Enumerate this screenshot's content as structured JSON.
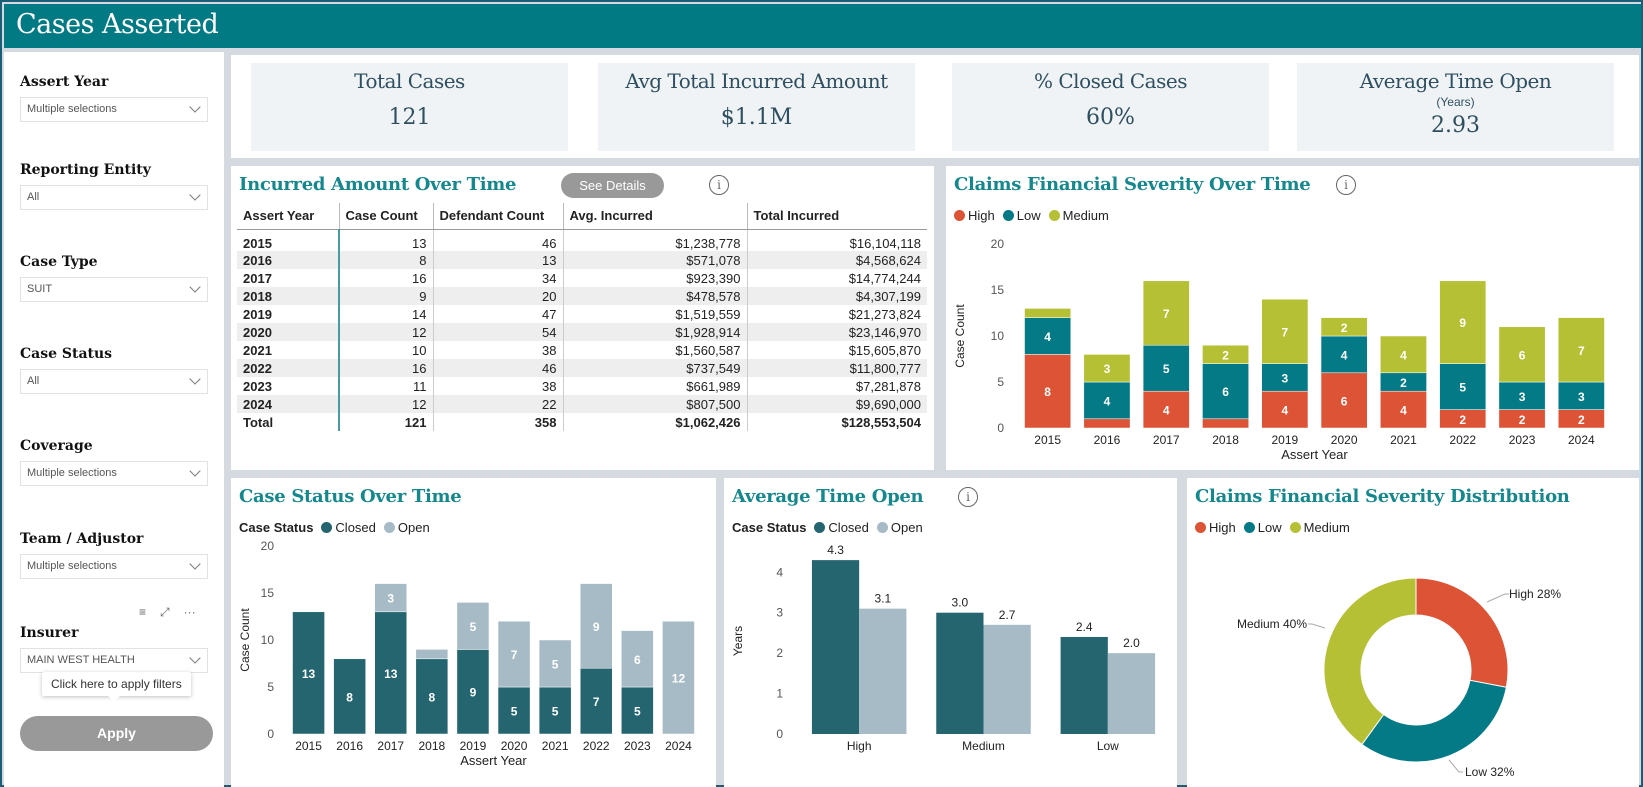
{
  "app": {
    "title": "Cases Asserted"
  },
  "colors": {
    "teal_header": "#017a84",
    "high": "#dc5335",
    "low": "#037a86",
    "medium": "#b5c035",
    "closed": "#246570",
    "open": "#a7bbc6",
    "title_teal": "#15888e"
  },
  "filters": [
    {
      "label": "Assert Year",
      "value": "Multiple selections"
    },
    {
      "label": "Reporting Entity",
      "value": "All"
    },
    {
      "label": "Case Type",
      "value": "SUIT"
    },
    {
      "label": "Case Status",
      "value": "All"
    },
    {
      "label": "Coverage",
      "value": "Multiple selections"
    },
    {
      "label": "Team / Adjustor",
      "value": "Multiple selections"
    },
    {
      "label": "Insurer",
      "value": "MAIN WEST HEALTH"
    }
  ],
  "slicer_tools": {
    "filter_icon": "≡",
    "focus_icon": "⤢",
    "more_icon": "···"
  },
  "tooltip": {
    "text": "Click here to apply filters"
  },
  "apply_button": {
    "label": "Apply"
  },
  "kpis": [
    {
      "title": "Total Cases",
      "subtitle": "",
      "value": "121"
    },
    {
      "title": "Avg Total Incurred Amount",
      "subtitle": "",
      "value": "$1.1M"
    },
    {
      "title": "% Closed Cases",
      "subtitle": "",
      "value": "60%"
    },
    {
      "title": "Average Time Open",
      "subtitle": "(Years)",
      "value": "2.93"
    }
  ],
  "incurred_table": {
    "title": "Incurred Amount Over Time",
    "see_details_label": "See Details",
    "info_icon": "i",
    "columns": [
      "Assert Year",
      "Case Count",
      "Defendant Count",
      "Avg. Incurred",
      "Total Incurred"
    ],
    "rows": [
      [
        "2015",
        "13",
        "46",
        "$1,238,778",
        "$16,104,118"
      ],
      [
        "2016",
        "8",
        "13",
        "$571,078",
        "$4,568,624"
      ],
      [
        "2017",
        "16",
        "34",
        "$923,390",
        "$14,774,244"
      ],
      [
        "2018",
        "9",
        "20",
        "$478,578",
        "$4,307,199"
      ],
      [
        "2019",
        "14",
        "47",
        "$1,519,559",
        "$21,273,824"
      ],
      [
        "2020",
        "12",
        "54",
        "$1,928,914",
        "$23,146,970"
      ],
      [
        "2021",
        "10",
        "38",
        "$1,560,587",
        "$15,605,870"
      ],
      [
        "2022",
        "16",
        "46",
        "$737,549",
        "$11,800,777"
      ],
      [
        "2023",
        "11",
        "38",
        "$661,989",
        "$7,281,878"
      ],
      [
        "2024",
        "12",
        "22",
        "$807,500",
        "$9,690,000"
      ]
    ],
    "total": [
      "Total",
      "121",
      "358",
      "$1,062,426",
      "$128,553,504"
    ]
  },
  "chart_data": [
    {
      "id": "severity_over_time",
      "type": "bar",
      "stacked": true,
      "title": "Claims Financial Severity Over Time",
      "info_icon": "i",
      "legend_title": "",
      "legend_position": "top-left",
      "categories": [
        "2015",
        "2016",
        "2017",
        "2018",
        "2019",
        "2020",
        "2021",
        "2022",
        "2023",
        "2024"
      ],
      "series": [
        {
          "name": "High",
          "color": "#dc5335",
          "values": [
            8,
            1,
            4,
            1,
            4,
            6,
            4,
            2,
            2,
            2
          ],
          "labels": [
            "8",
            "",
            "4",
            "",
            "4",
            "6",
            "4",
            "2",
            "2",
            "2"
          ]
        },
        {
          "name": "Low",
          "color": "#037a86",
          "values": [
            4,
            4,
            5,
            6,
            3,
            4,
            2,
            5,
            3,
            3
          ],
          "labels": [
            "4",
            "4",
            "5",
            "6",
            "3",
            "4",
            "2",
            "5",
            "3",
            "3"
          ]
        },
        {
          "name": "Medium",
          "color": "#b5c035",
          "values": [
            1,
            3,
            7,
            2,
            7,
            2,
            4,
            9,
            6,
            7
          ],
          "labels": [
            "",
            "3",
            "7",
            "2",
            "7",
            "2",
            "4",
            "9",
            "6",
            "7"
          ]
        }
      ],
      "xlabel": "Assert Year",
      "ylabel": "Case Count",
      "yticks": [
        0,
        5,
        10,
        15,
        20
      ],
      "ylim": [
        0,
        20
      ],
      "grid": false
    },
    {
      "id": "case_status_over_time",
      "type": "bar",
      "stacked": true,
      "title": "Case Status Over Time",
      "legend_title": "Case Status",
      "legend_position": "top-left",
      "categories": [
        "2015",
        "2016",
        "2017",
        "2018",
        "2019",
        "2020",
        "2021",
        "2022",
        "2023",
        "2024"
      ],
      "series": [
        {
          "name": "Closed",
          "color": "#246570",
          "values": [
            13,
            8,
            13,
            8,
            9,
            5,
            5,
            7,
            5,
            0
          ],
          "labels": [
            "13",
            "8",
            "13",
            "8",
            "9",
            "5",
            "5",
            "7",
            "5",
            ""
          ]
        },
        {
          "name": "Open",
          "color": "#a7bbc6",
          "values": [
            0,
            0,
            3,
            1,
            5,
            7,
            5,
            9,
            6,
            12
          ],
          "labels": [
            "",
            "",
            "3",
            "",
            "5",
            "7",
            "5",
            "9",
            "6",
            "12"
          ]
        }
      ],
      "xlabel": "Assert Year",
      "ylabel": "Case Count",
      "yticks": [
        0,
        5,
        10,
        15,
        20
      ],
      "ylim": [
        0,
        20
      ],
      "grid": false
    },
    {
      "id": "average_time_open",
      "type": "bar",
      "stacked": false,
      "title": "Average Time Open",
      "info_icon": "i",
      "legend_title": "Case Status",
      "legend_position": "top-left",
      "categories": [
        "High",
        "Medium",
        "Low"
      ],
      "series": [
        {
          "name": "Closed",
          "color": "#246570",
          "values": [
            4.3,
            3.0,
            2.4
          ],
          "labels": [
            "4.3",
            "3.0",
            "2.4"
          ]
        },
        {
          "name": "Open",
          "color": "#a7bbc6",
          "values": [
            3.1,
            2.7,
            2.0
          ],
          "labels": [
            "3.1",
            "2.7",
            "2.0"
          ]
        }
      ],
      "xlabel": "",
      "ylabel": "Years",
      "yticks": [
        0,
        1,
        2,
        3,
        4
      ],
      "ylim": [
        0,
        4.6
      ],
      "grid": false
    },
    {
      "id": "severity_distribution",
      "type": "pie",
      "donut": true,
      "title": "Claims Financial Severity Distribution",
      "legend_title": "",
      "legend_position": "top-left",
      "slices": [
        {
          "name": "High",
          "value": 28,
          "color": "#dc5335",
          "label": "High 28%"
        },
        {
          "name": "Low",
          "value": 32,
          "color": "#037a86",
          "label": "Low 32%"
        },
        {
          "name": "Medium",
          "value": 40,
          "color": "#b5c035",
          "label": "Medium 40%"
        }
      ]
    }
  ]
}
